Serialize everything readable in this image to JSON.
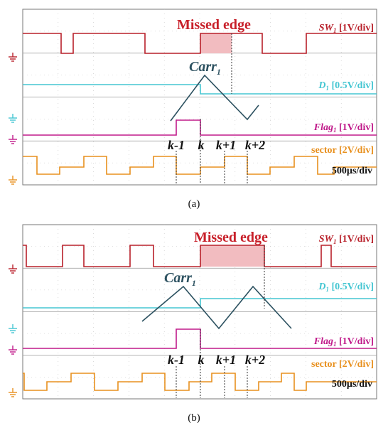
{
  "panels": [
    {
      "caption": "(a)",
      "missed_edge_label": "Missed edge",
      "carrier_label": "Carr",
      "carrier_subscript": "1",
      "channels": [
        {
          "name": "SW",
          "sub": "1",
          "scale": "[1V/div]",
          "color": "#b8202a"
        },
        {
          "name": "D",
          "sub": "1",
          "scale": "[0.5V/div]",
          "color": "#45c6d2"
        },
        {
          "name": "Flag",
          "sub": "1",
          "scale": "[1V/div]",
          "color": "#c01a8a"
        },
        {
          "name": "sector",
          "sub": "",
          "scale": "[2V/div]",
          "color": "#e8901e"
        }
      ],
      "timebase": "500µs/div",
      "k_labels": [
        "k-1",
        "k",
        "k+1",
        "k+2"
      ]
    },
    {
      "caption": "(b)",
      "missed_edge_label": "Missed edge",
      "carrier_label": "Carr",
      "carrier_subscript": "1",
      "channels": [
        {
          "name": "SW",
          "sub": "1",
          "scale": "[1V/div]",
          "color": "#b8202a"
        },
        {
          "name": "D",
          "sub": "1",
          "scale": "[0.5V/div]",
          "color": "#45c6d2"
        },
        {
          "name": "Flag",
          "sub": "1",
          "scale": "[1V/div]",
          "color": "#c01a8a"
        },
        {
          "name": "sector",
          "sub": "",
          "scale": "[2V/div]",
          "color": "#e8901e"
        }
      ],
      "timebase": "500µs/div",
      "k_labels": [
        "k-1",
        "k",
        "k+1",
        "k+2"
      ]
    }
  ],
  "colors": {
    "carrier": "#2c5160",
    "missed_fill": "#f2bcc0",
    "grid": "#b8b8b8",
    "frame": "#777777",
    "label_red": "#c8202a",
    "cursor": "#333333"
  },
  "chart_data": [
    {
      "type": "line",
      "panel": "a",
      "title": "",
      "series": [
        {
          "name": "SW1",
          "waveform": "square",
          "levels": [
            "high",
            "low"
          ],
          "low_intervals_div": [
            [
              1.75,
              2.15
            ],
            [
              5.4,
              5.9
            ],
            [
              8.7,
              9.3
            ]
          ]
        },
        {
          "name": "D1",
          "waveform": "step",
          "step_at_div": 7.6,
          "offset_after_step_div": 0.05
        },
        {
          "name": "Carr1",
          "waveform": "triangle",
          "peak_div": 7.6,
          "extent_div": [
            6.25,
            9.5
          ]
        },
        {
          "name": "Flag1",
          "waveform": "pulse",
          "high_interval_div": [
            6.65,
            7.6
          ]
        },
        {
          "name": "sector",
          "waveform": "staircase"
        }
      ],
      "cursor_positions_div": [
        6.65,
        7.6,
        8.55,
        9.35
      ],
      "missed_edge_interval_div": [
        7.6,
        8.85
      ]
    },
    {
      "type": "line",
      "panel": "b",
      "title": "",
      "series": [
        {
          "name": "SW1",
          "waveform": "square",
          "levels": [
            "high",
            "low"
          ],
          "low_intervals_div": [
            [
              1.75,
              2.15
            ],
            [
              4.1,
              5.0
            ],
            [
              10.0,
              11.4
            ]
          ]
        },
        {
          "name": "D1",
          "waveform": "step",
          "step_at_div": 7.6,
          "offset_after_step_div": 0.05
        },
        {
          "name": "Carr1",
          "waveform": "triangle",
          "peaks_div": [
            7.1,
            9.55
          ],
          "extent_div": [
            5.4,
            11.1
          ]
        },
        {
          "name": "Flag1",
          "waveform": "pulse",
          "high_interval_div": [
            6.65,
            7.6
          ]
        },
        {
          "name": "sector",
          "waveform": "staircase"
        }
      ],
      "cursor_positions_div": [
        6.65,
        7.6,
        8.55,
        9.35
      ],
      "missed_edge_interval_div": [
        7.6,
        9.95
      ]
    }
  ]
}
